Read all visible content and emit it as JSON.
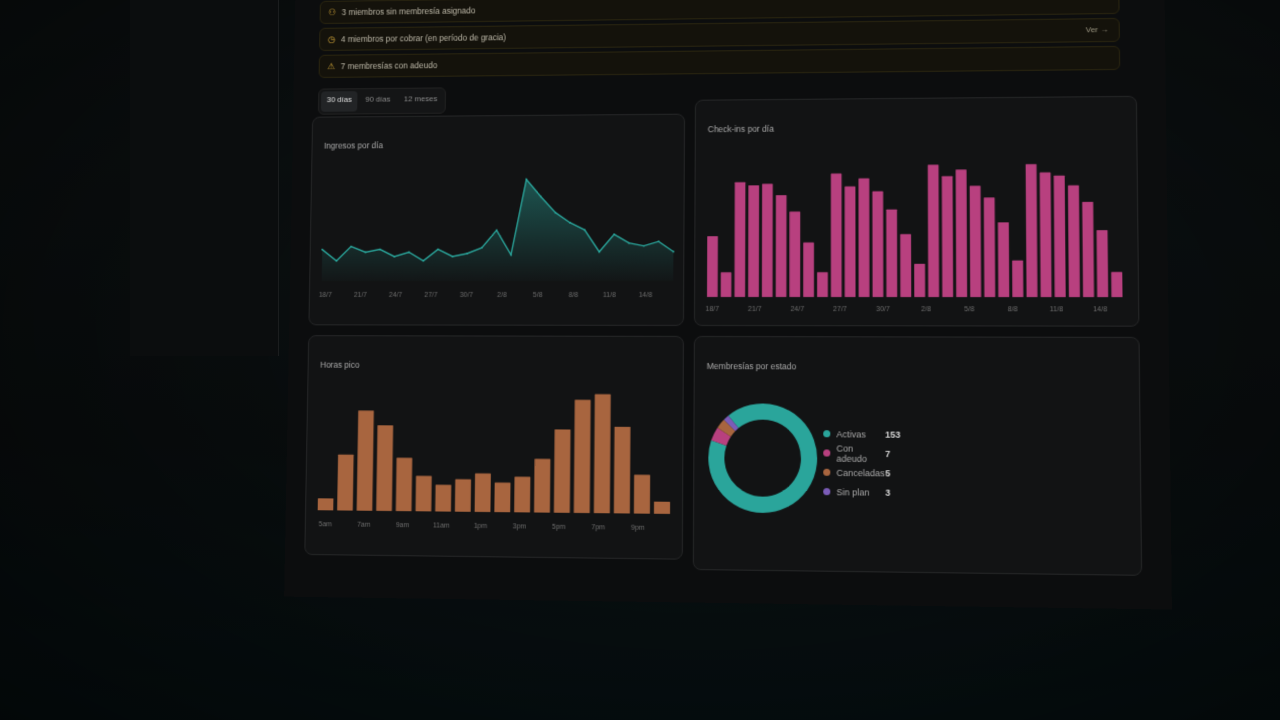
{
  "alerts": [
    {
      "icon": "users-icon",
      "text": "3 miembros sin membresía asignado"
    },
    {
      "icon": "clock-icon",
      "text": "4 miembros por cobrar (en período de gracia)",
      "action": "Ver →"
    },
    {
      "icon": "warning-icon",
      "text": "7 membresías con adeudo"
    }
  ],
  "range_tabs": [
    "30 días",
    "90 días",
    "12 meses"
  ],
  "active_tab": "30 días",
  "colors": {
    "teal": "#2aa59b",
    "pink": "#b8407f",
    "orange": "#a8653f",
    "purple": "#7b5cb8"
  },
  "chart_data": [
    {
      "type": "area",
      "title": "Ingresos por día",
      "x_ticks": [
        "18/7",
        "21/7",
        "24/7",
        "27/7",
        "30/7",
        "2/8",
        "5/8",
        "8/8",
        "11/8",
        "14/8"
      ],
      "values": [
        22,
        14,
        24,
        20,
        22,
        17,
        20,
        14,
        22,
        17,
        19,
        23,
        35,
        18,
        70,
        58,
        47,
        40,
        35,
        20,
        32,
        26,
        24,
        27,
        20
      ],
      "ylim": [
        0,
        80
      ],
      "color": "#2aa59b"
    },
    {
      "type": "bar",
      "title": "Check-ins por día",
      "x_ticks": [
        "18/7",
        "21/7",
        "24/7",
        "27/7",
        "30/7",
        "2/8",
        "5/8",
        "8/8",
        "11/8",
        "14/8"
      ],
      "values": [
        37,
        15,
        70,
        68,
        69,
        62,
        52,
        33,
        15,
        75,
        67,
        72,
        64,
        53,
        38,
        20,
        80,
        73,
        77,
        67,
        60,
        45,
        22,
        80,
        75,
        73,
        67,
        57,
        40,
        15
      ],
      "ylim": [
        0,
        85
      ],
      "color": "#b8407f"
    },
    {
      "type": "bar",
      "title": "Horas pico",
      "x_ticks": [
        "5am",
        "7am",
        "9am",
        "11am",
        "1pm",
        "3pm",
        "5pm",
        "7pm",
        "9pm"
      ],
      "values": [
        8,
        38,
        68,
        58,
        36,
        24,
        18,
        22,
        26,
        20,
        24,
        36,
        56,
        76,
        80,
        58,
        26,
        8
      ],
      "ylim": [
        0,
        85
      ],
      "color": "#a8653f"
    },
    {
      "type": "pie",
      "title": "Membresías por estado",
      "slices": [
        {
          "label": "Activas",
          "value": 153,
          "color": "#2aa59b"
        },
        {
          "label": "Con adeudo",
          "value": 7,
          "color": "#b8407f"
        },
        {
          "label": "Canceladas",
          "value": 5,
          "color": "#a8653f"
        },
        {
          "label": "Sin plan",
          "value": 3,
          "color": "#7b5cb8"
        }
      ]
    }
  ]
}
